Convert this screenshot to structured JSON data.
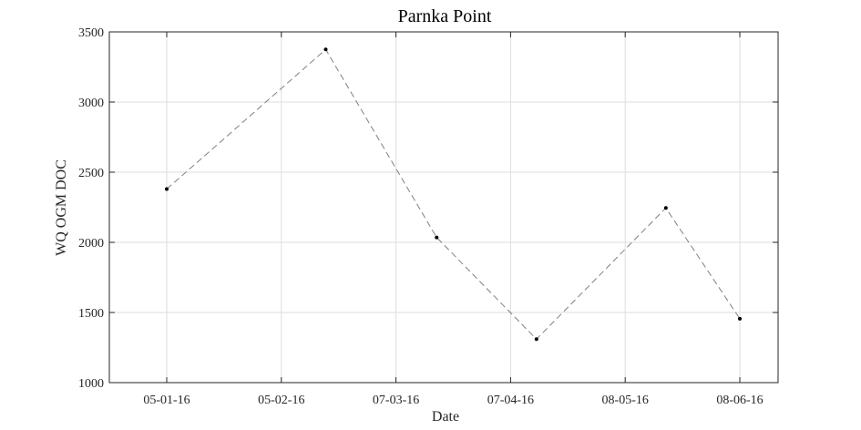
{
  "chart_data": {
    "type": "line",
    "title": "Parnka Point",
    "xlabel": "Date",
    "ylabel": "WQ OGM DOC",
    "x_ticks": [
      "05-01-16",
      "05-02-16",
      "07-03-16",
      "07-04-16",
      "08-05-16",
      "08-06-16"
    ],
    "xlim": [
      "2016-01-05",
      "2016-06-08"
    ],
    "ylim": [
      1000,
      3500
    ],
    "y_ticks": [
      1000,
      1500,
      2000,
      2500,
      3000,
      3500
    ],
    "grid": true,
    "series": [
      {
        "x": [
          "2016-01-05",
          "2016-02-17",
          "2016-03-18",
          "2016-04-14",
          "2016-05-19",
          "2016-06-08"
        ],
        "values": [
          2380,
          3375,
          2035,
          1310,
          2245,
          1455
        ],
        "line_style": "dashed",
        "line_color": "#808080",
        "marker_color": "#000000"
      }
    ]
  }
}
